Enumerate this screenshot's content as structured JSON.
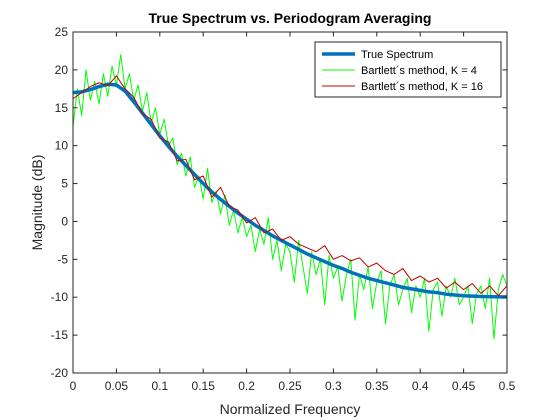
{
  "chart_data": {
    "type": "line",
    "title": "True Spectrum vs. Periodogram Averaging",
    "xlabel": "Normalized Frequency",
    "ylabel": "Magnitude (dB)",
    "xlim": [
      0,
      0.5
    ],
    "ylim": [
      -20,
      25
    ],
    "xticks": [
      0,
      0.05,
      0.1,
      0.15,
      0.2,
      0.25,
      0.3,
      0.35,
      0.4,
      0.45,
      0.5
    ],
    "xtick_labels": [
      "0",
      "0.05",
      "0.1",
      "0.15",
      "0.2",
      "0.25",
      "0.3",
      "0.35",
      "0.4",
      "0.45",
      "0.5"
    ],
    "yticks": [
      -20,
      -15,
      -10,
      -5,
      0,
      5,
      10,
      15,
      20,
      25
    ],
    "ytick_labels": [
      "-20",
      "-15",
      "-10",
      "-5",
      "0",
      "5",
      "10",
      "15",
      "20",
      "25"
    ],
    "grid": false,
    "legend_position": "top-right",
    "series": [
      {
        "name": "True Spectrum",
        "color": "#0072BD",
        "x": [
          0,
          0.01,
          0.02,
          0.03,
          0.04,
          0.05,
          0.06,
          0.07,
          0.08,
          0.09,
          0.1,
          0.11,
          0.12,
          0.13,
          0.14,
          0.15,
          0.16,
          0.17,
          0.18,
          0.19,
          0.2,
          0.21,
          0.22,
          0.23,
          0.24,
          0.25,
          0.26,
          0.27,
          0.28,
          0.29,
          0.3,
          0.31,
          0.32,
          0.33,
          0.34,
          0.35,
          0.36,
          0.37,
          0.38,
          0.39,
          0.4,
          0.41,
          0.42,
          0.43,
          0.44,
          0.45,
          0.46,
          0.47,
          0.48,
          0.49,
          0.5
        ],
        "y": [
          17,
          17.1,
          17.4,
          17.8,
          18.1,
          18.0,
          17.2,
          15.8,
          14.3,
          12.8,
          11.3,
          9.9,
          8.6,
          7.4,
          6.2,
          5.0,
          3.9,
          2.9,
          2.0,
          1.1,
          0.3,
          -0.5,
          -1.2,
          -1.9,
          -2.5,
          -3.1,
          -3.7,
          -4.3,
          -4.8,
          -5.3,
          -5.8,
          -6.2,
          -6.7,
          -7.1,
          -7.5,
          -7.8,
          -8.1,
          -8.4,
          -8.7,
          -8.9,
          -9.1,
          -9.3,
          -9.4,
          -9.6,
          -9.7,
          -9.8,
          -9.85,
          -9.9,
          -9.92,
          -9.95,
          -9.95
        ]
      },
      {
        "name": "Bartlett´s method, K = 4",
        "color": "#00FF00",
        "x": [
          0,
          0.005,
          0.01,
          0.015,
          0.02,
          0.025,
          0.03,
          0.035,
          0.04,
          0.045,
          0.05,
          0.055,
          0.06,
          0.065,
          0.07,
          0.075,
          0.08,
          0.085,
          0.09,
          0.095,
          0.1,
          0.105,
          0.11,
          0.115,
          0.12,
          0.125,
          0.13,
          0.135,
          0.14,
          0.145,
          0.15,
          0.155,
          0.16,
          0.165,
          0.17,
          0.175,
          0.18,
          0.185,
          0.19,
          0.195,
          0.2,
          0.205,
          0.21,
          0.215,
          0.22,
          0.225,
          0.23,
          0.235,
          0.24,
          0.245,
          0.25,
          0.255,
          0.26,
          0.265,
          0.27,
          0.275,
          0.28,
          0.285,
          0.29,
          0.295,
          0.3,
          0.305,
          0.31,
          0.315,
          0.32,
          0.325,
          0.33,
          0.335,
          0.34,
          0.345,
          0.35,
          0.355,
          0.36,
          0.365,
          0.37,
          0.375,
          0.38,
          0.385,
          0.39,
          0.395,
          0.4,
          0.405,
          0.41,
          0.415,
          0.42,
          0.425,
          0.43,
          0.435,
          0.44,
          0.445,
          0.45,
          0.455,
          0.46,
          0.465,
          0.47,
          0.475,
          0.48,
          0.485,
          0.49,
          0.495,
          0.5
        ],
        "y": [
          12.5,
          17.5,
          14.0,
          20.0,
          16.0,
          18.5,
          15.5,
          19.5,
          16.5,
          20.5,
          18.0,
          22.0,
          17.5,
          19.5,
          16.0,
          18.0,
          14.5,
          17.0,
          13.0,
          15.0,
          11.5,
          13.5,
          10.0,
          11.0,
          7.5,
          9.0,
          6.0,
          8.5,
          4.5,
          6.0,
          3.0,
          7.0,
          2.5,
          4.0,
          1.0,
          3.5,
          -0.5,
          1.5,
          -1.5,
          0.5,
          -2.0,
          -0.5,
          -4.0,
          -1.0,
          -3.0,
          0.5,
          -5.0,
          -2.5,
          -6.5,
          -3.0,
          -4.0,
          -8.0,
          -2.5,
          -6.0,
          -9.5,
          -4.0,
          -7.0,
          -5.0,
          -11.0,
          -4.5,
          -7.5,
          -6.0,
          -10.5,
          -7.0,
          -5.0,
          -13.0,
          -7.0,
          -9.0,
          -6.0,
          -11.5,
          -8.0,
          -6.5,
          -13.5,
          -8.5,
          -7.0,
          -11.0,
          -9.0,
          -7.5,
          -12.0,
          -8.5,
          -10.0,
          -7.5,
          -14.5,
          -9.0,
          -8.0,
          -12.5,
          -8.5,
          -10.0,
          -7.5,
          -11.0,
          -10.0,
          -8.5,
          -13.5,
          -9.5,
          -8.5,
          -11.5,
          -7.5,
          -15.5,
          -9.0,
          -7.0,
          -8.5
        ]
      },
      {
        "name": "Bartlett´s method, K = 16",
        "color": "#C00000",
        "x": [
          0,
          0.01,
          0.02,
          0.03,
          0.04,
          0.05,
          0.06,
          0.07,
          0.08,
          0.09,
          0.1,
          0.11,
          0.12,
          0.13,
          0.14,
          0.15,
          0.16,
          0.17,
          0.18,
          0.19,
          0.2,
          0.21,
          0.22,
          0.23,
          0.24,
          0.25,
          0.26,
          0.27,
          0.28,
          0.29,
          0.3,
          0.31,
          0.32,
          0.33,
          0.34,
          0.35,
          0.36,
          0.37,
          0.38,
          0.39,
          0.4,
          0.41,
          0.42,
          0.43,
          0.44,
          0.45,
          0.46,
          0.47,
          0.48,
          0.49,
          0.5
        ],
        "y": [
          16.2,
          17.0,
          17.8,
          18.3,
          17.9,
          19.2,
          17.5,
          16.4,
          14.2,
          13.5,
          11.0,
          10.5,
          8.0,
          8.2,
          5.5,
          6.0,
          3.2,
          4.5,
          2.0,
          1.5,
          -0.2,
          0.5,
          -1.5,
          -1.0,
          -2.5,
          -2.0,
          -3.0,
          -3.5,
          -4.0,
          -3.2,
          -5.0,
          -4.5,
          -5.2,
          -4.8,
          -6.0,
          -5.5,
          -6.5,
          -7.0,
          -6.2,
          -7.8,
          -7.2,
          -8.0,
          -7.5,
          -8.8,
          -8.0,
          -9.0,
          -8.2,
          -9.5,
          -8.5,
          -9.8,
          -8.5
        ]
      }
    ]
  }
}
